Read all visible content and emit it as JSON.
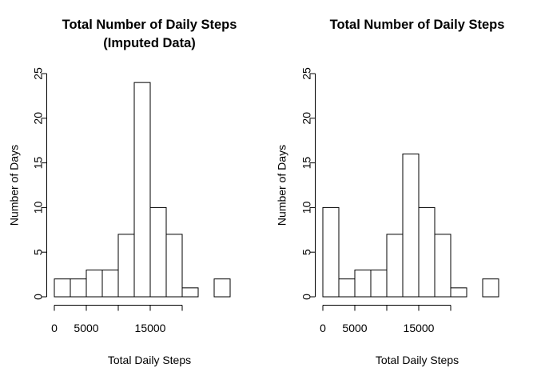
{
  "chart_data": [
    {
      "type": "bar",
      "title": "Total Number of Daily Steps\n(Imputed Data)",
      "xlabel": "Total Daily Steps",
      "ylabel": "Number of Days",
      "bin_width": 2500,
      "bins_start": 0,
      "values": [
        2,
        2,
        3,
        3,
        7,
        24,
        10,
        7,
        1,
        0,
        2
      ],
      "x_ticks": [
        0,
        5000,
        10000,
        15000,
        20000
      ],
      "x_tick_labels": [
        "0",
        "5000",
        "",
        "15000",
        ""
      ],
      "xlim": [
        0,
        27500
      ],
      "y_ticks": [
        0,
        5,
        10,
        15,
        20,
        25
      ],
      "y_tick_labels": [
        "0",
        "5",
        "10",
        "15",
        "20",
        "25"
      ],
      "ylim": [
        0,
        25
      ],
      "grid": false
    },
    {
      "type": "bar",
      "title": "Total Number of Daily Steps",
      "xlabel": "Total Daily Steps",
      "ylabel": "Number of Days",
      "bin_width": 2500,
      "bins_start": 0,
      "values": [
        10,
        2,
        3,
        3,
        7,
        16,
        10,
        7,
        1,
        0,
        2
      ],
      "x_ticks": [
        0,
        5000,
        10000,
        15000,
        20000
      ],
      "x_tick_labels": [
        "0",
        "5000",
        "",
        "15000",
        ""
      ],
      "xlim": [
        0,
        27500
      ],
      "y_ticks": [
        0,
        5,
        10,
        15,
        20,
        25
      ],
      "y_tick_labels": [
        "0",
        "5",
        "10",
        "15",
        "20",
        "25"
      ],
      "ylim": [
        0,
        25
      ],
      "grid": false
    }
  ]
}
